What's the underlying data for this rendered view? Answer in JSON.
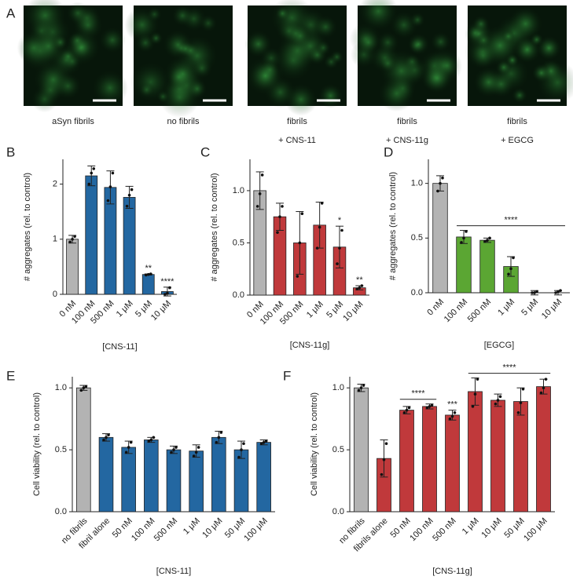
{
  "panel_a": {
    "panel": "A",
    "images": [
      {
        "caption": [
          "aSyn fibrils"
        ]
      },
      {
        "caption": [
          "no fibrils"
        ]
      },
      {
        "caption": [
          "fibrils",
          "+ CNS-11"
        ]
      },
      {
        "caption": [
          "fibrils",
          "+ CNS-11g"
        ]
      },
      {
        "caption": [
          "fibrils",
          "+ EGCG"
        ]
      }
    ]
  },
  "chart_data": [
    {
      "type": "bar",
      "panel": "B",
      "xlabel": "[CNS-11]",
      "ylabel": "# aggregates (rel. to control)",
      "categories": [
        "0 nM",
        "100 nM",
        "500 nM",
        "1 μM",
        "5 μM",
        "10 μM"
      ],
      "values": [
        1.0,
        2.15,
        1.94,
        1.76,
        0.36,
        0.05
      ],
      "errors": [
        0.07,
        0.18,
        0.3,
        0.2,
        0.01,
        0.08
      ],
      "points": [
        [
          0.95,
          1.0,
          1.05
        ],
        [
          2.0,
          2.2,
          2.28
        ],
        [
          1.7,
          1.95,
          2.2
        ],
        [
          1.6,
          1.8,
          1.9
        ],
        [
          0.35,
          0.36,
          0.37
        ],
        [
          0.0,
          0.02,
          0.12
        ]
      ],
      "colors": [
        "#b3b3b3",
        "#2367a1",
        "#2367a1",
        "#2367a1",
        "#2367a1",
        "#2367a1"
      ],
      "annotations": [
        null,
        null,
        null,
        null,
        "**",
        "****"
      ],
      "ylim": [
        0,
        2.45
      ],
      "yticks": [
        0,
        1,
        2
      ]
    },
    {
      "type": "bar",
      "panel": "C",
      "xlabel": "[CNS-11g]",
      "ylabel": "# aggregates (rel. to control)",
      "categories": [
        "0 nM",
        "100 nM",
        "500 nM",
        "1 μM",
        "5 μM",
        "10 μM"
      ],
      "values": [
        1.0,
        0.75,
        0.5,
        0.67,
        0.46,
        0.07
      ],
      "errors": [
        0.18,
        0.13,
        0.3,
        0.22,
        0.2,
        0.02
      ],
      "points": [
        [
          0.85,
          0.97,
          1.15
        ],
        [
          0.6,
          0.75,
          0.85
        ],
        [
          0.18,
          0.5,
          0.78
        ],
        [
          0.45,
          0.65,
          0.88
        ],
        [
          0.3,
          0.45,
          0.62
        ],
        [
          0.06,
          0.07,
          0.09
        ]
      ],
      "colors": [
        "#b3b3b3",
        "#c0393b",
        "#c0393b",
        "#c0393b",
        "#c0393b",
        "#c0393b"
      ],
      "annotations": [
        null,
        null,
        null,
        null,
        "*",
        "**"
      ],
      "ylim": [
        0,
        1.3
      ],
      "yticks": [
        {
          "value": 0,
          "label": "0.0"
        },
        {
          "value": 0.5,
          "label": "0.5"
        },
        {
          "value": 1,
          "label": "1.0"
        }
      ]
    },
    {
      "type": "bar",
      "panel": "D",
      "xlabel": "[EGCG]",
      "ylabel": "# aggregates (rel. to control)",
      "categories": [
        "0 nM",
        "100 nM",
        "500 nM",
        "1 μM",
        "5 μM",
        "10 μM"
      ],
      "values": [
        1.0,
        0.51,
        0.48,
        0.24,
        0.0,
        0.0
      ],
      "errors": [
        0.07,
        0.06,
        0.02,
        0.09,
        0.02,
        0.02
      ],
      "points": [
        [
          0.93,
          1.0,
          1.05
        ],
        [
          0.46,
          0.5,
          0.56
        ],
        [
          0.47,
          0.48,
          0.5
        ],
        [
          0.17,
          0.22,
          0.32
        ],
        [
          0.0,
          0.0,
          0.01
        ],
        [
          0.0,
          0.01,
          0.02
        ]
      ],
      "colors": [
        "#b3b3b3",
        "#5ba633",
        "#5ba633",
        "#5ba633",
        "#5ba633",
        "#5ba633"
      ],
      "brackets": [
        {
          "text": "****",
          "from": "100 nM",
          "to": "10 μM"
        }
      ],
      "ylim": [
        0,
        1.22
      ],
      "yticks": [
        {
          "value": 0,
          "label": "0.0"
        },
        {
          "value": 0.5,
          "label": "0.5"
        },
        {
          "value": 1,
          "label": "1.0"
        }
      ]
    },
    {
      "type": "bar",
      "panel": "E",
      "xlabel": "[CNS-11]",
      "ylabel": "Cell viability (rel. to control)",
      "categories": [
        "no fibrils",
        "fibril alone",
        "50 nM",
        "100 nM",
        "500 nM",
        "1 μM",
        "10 μM",
        "50 μM",
        "100 μM"
      ],
      "values": [
        1.0,
        0.6,
        0.52,
        0.58,
        0.5,
        0.49,
        0.6,
        0.5,
        0.56
      ],
      "errors": [
        0.02,
        0.03,
        0.05,
        0.02,
        0.03,
        0.05,
        0.05,
        0.07,
        0.02
      ],
      "points": [
        [
          0.98,
          1.0,
          1.01
        ],
        [
          0.58,
          0.6,
          0.62
        ],
        [
          0.48,
          0.52,
          0.56
        ],
        [
          0.57,
          0.58,
          0.6
        ],
        [
          0.48,
          0.5,
          0.52
        ],
        [
          0.45,
          0.48,
          0.52
        ],
        [
          0.56,
          0.6,
          0.64
        ],
        [
          0.44,
          0.5,
          0.55
        ],
        [
          0.55,
          0.56,
          0.57
        ]
      ],
      "colors": [
        "#b3b3b3",
        "#2367a1",
        "#2367a1",
        "#2367a1",
        "#2367a1",
        "#2367a1",
        "#2367a1",
        "#2367a1",
        "#2367a1"
      ],
      "ylim": [
        0,
        1.09
      ],
      "yticks": [
        {
          "value": 0,
          "label": "0.0"
        },
        {
          "value": 0.5,
          "label": "0.5"
        },
        {
          "value": 1,
          "label": "1.0"
        }
      ]
    },
    {
      "type": "bar",
      "panel": "F",
      "xlabel": "[CNS-11g]",
      "ylabel": "Cell viability (rel. to control)",
      "categories": [
        "no fibrils",
        "fibrils alone",
        "50 nM",
        "100 nM",
        "500 nM",
        "1 μM",
        "10 μM",
        "50 μM",
        "100 μM"
      ],
      "values": [
        1.0,
        0.43,
        0.82,
        0.85,
        0.78,
        0.97,
        0.9,
        0.89,
        1.01
      ],
      "errors": [
        0.03,
        0.15,
        0.03,
        0.02,
        0.04,
        0.11,
        0.05,
        0.11,
        0.06
      ],
      "points": [
        [
          0.98,
          1.0,
          1.02
        ],
        [
          0.3,
          0.42,
          0.55
        ],
        [
          0.8,
          0.82,
          0.84
        ],
        [
          0.84,
          0.85,
          0.86
        ],
        [
          0.75,
          0.77,
          0.8
        ],
        [
          0.85,
          0.95,
          1.07
        ],
        [
          0.87,
          0.9,
          0.93
        ],
        [
          0.8,
          0.88,
          0.99
        ],
        [
          0.96,
          1.0,
          1.07
        ]
      ],
      "colors": [
        "#b3b3b3",
        "#c0393b",
        "#c0393b",
        "#c0393b",
        "#c0393b",
        "#c0393b",
        "#c0393b",
        "#c0393b",
        "#c0393b"
      ],
      "annotations": [
        null,
        null,
        null,
        null,
        "***",
        null,
        null,
        null,
        null
      ],
      "brackets": [
        {
          "text": "****",
          "from": "50 nM",
          "to": "100 nM"
        },
        {
          "text": "****",
          "from": "1 μM",
          "to": "100 μM"
        }
      ],
      "ylim": [
        0,
        1.09
      ],
      "yticks": [
        {
          "value": 0,
          "label": "0.0"
        },
        {
          "value": 0.5,
          "label": "0.5"
        },
        {
          "value": 1,
          "label": "1.0"
        }
      ]
    }
  ]
}
